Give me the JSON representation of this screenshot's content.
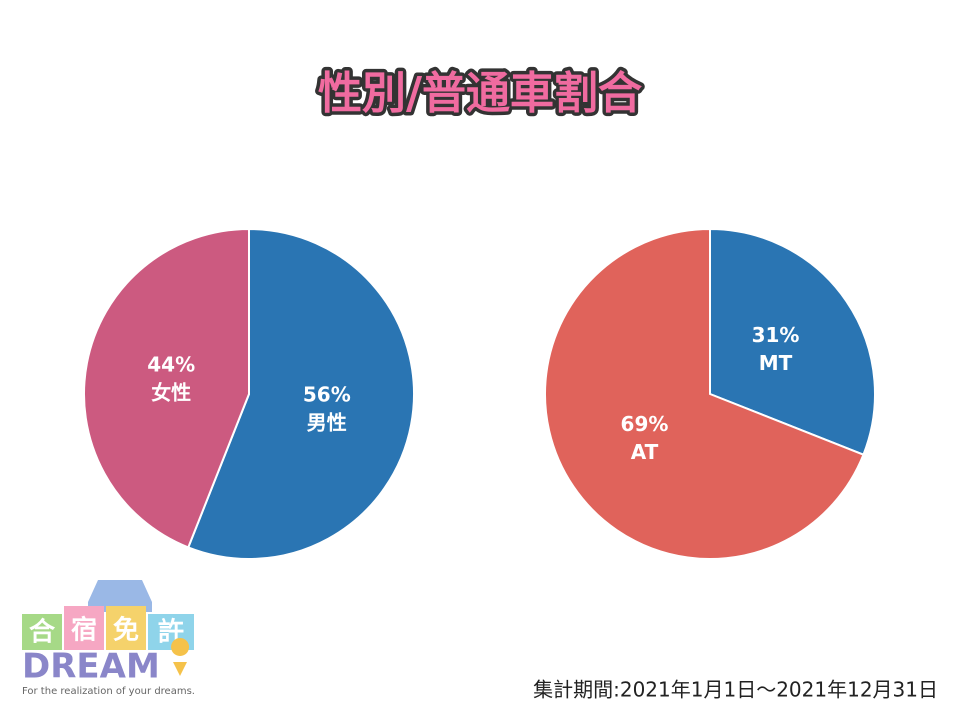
{
  "header": {
    "title": "性別/普通車割合"
  },
  "chart_data": [
    {
      "type": "pie",
      "categories": [
        "男性",
        "女性"
      ],
      "values": [
        56,
        44
      ],
      "value_labels": [
        "56%",
        "44%"
      ],
      "colors": [
        "#2a75b3",
        "#cc5a80"
      ]
    },
    {
      "type": "pie",
      "categories": [
        "MT",
        "AT"
      ],
      "values": [
        31,
        69
      ],
      "value_labels": [
        "31%",
        "69%"
      ],
      "colors": [
        "#2a75b3",
        "#e0635b"
      ]
    }
  ],
  "footer": {
    "period": "集計期間:2021年1月1日〜2021年12月31日"
  },
  "logo": {
    "tiles": [
      "合",
      "宿",
      "免",
      "許"
    ],
    "brand": "DREAM",
    "tagline": "For the realization of your dreams."
  }
}
